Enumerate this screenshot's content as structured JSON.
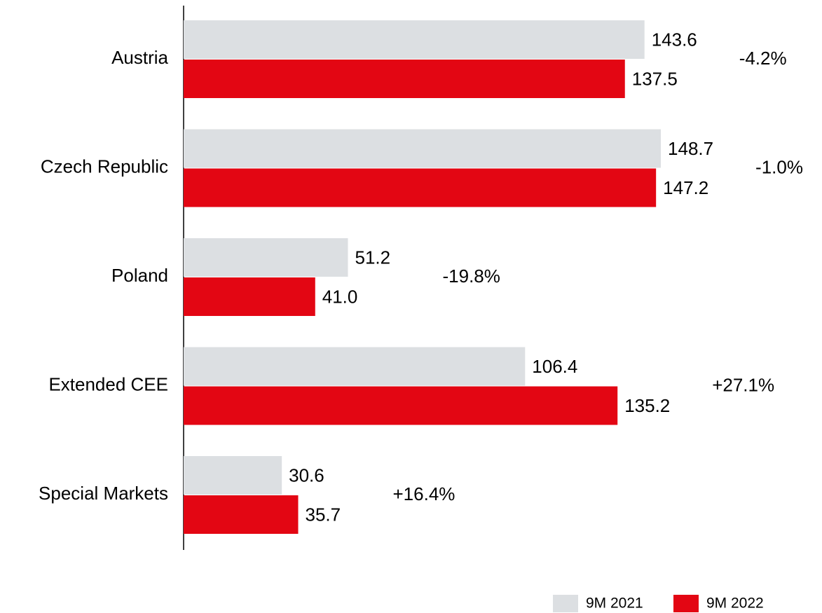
{
  "chart_data": {
    "type": "bar",
    "orientation": "horizontal",
    "categories": [
      "Austria",
      "Czech Republic",
      "Poland",
      "Extended CEE",
      "Special Markets"
    ],
    "series": [
      {
        "name": "9M 2021",
        "color": "#dcdfe2",
        "values": [
          143.6,
          148.7,
          51.2,
          106.4,
          30.6
        ]
      },
      {
        "name": "9M 2022",
        "color": "#e30613",
        "values": [
          137.5,
          147.2,
          41.0,
          135.2,
          35.7
        ],
        "value_labels": [
          "137.5",
          "147.2",
          "41.0",
          "135.2",
          "35.7"
        ]
      }
    ],
    "annotations": [
      "-4.2%",
      "-1.0%",
      "-19.8%",
      "+27.1%",
      "+16.4%"
    ]
  }
}
